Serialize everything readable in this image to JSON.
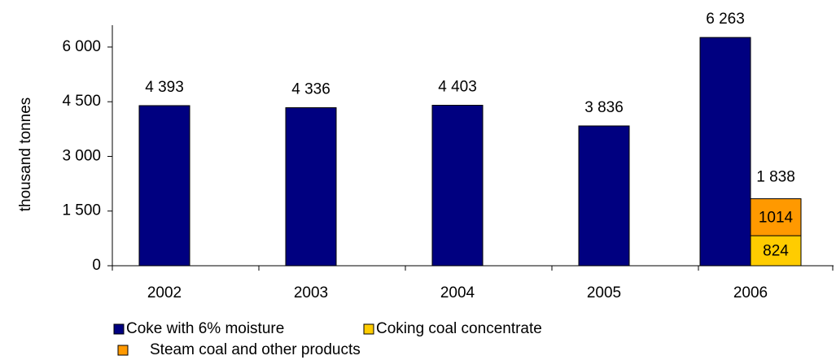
{
  "chart_data": {
    "type": "bar",
    "y_label": "thousand tonnes",
    "categories": [
      "2002",
      "2003",
      "2004",
      "2005",
      "2006"
    ],
    "series": [
      {
        "name": "Coke with 6% moisture",
        "color": "#000080",
        "stack": "coke",
        "values": [
          4393,
          4336,
          4403,
          3836,
          6263
        ],
        "value_labels": [
          "4 393",
          "4 336",
          "4 403",
          "3 836",
          "6 263"
        ]
      },
      {
        "name": "Coking coal concentrate",
        "color": "#ffcc00",
        "stack": "coal",
        "values": [
          null,
          null,
          null,
          null,
          824
        ],
        "value_labels": [
          null,
          null,
          null,
          null,
          "824"
        ]
      },
      {
        "name": "Steam coal and other products",
        "color": "#ff9900",
        "stack": "coal",
        "values": [
          null,
          null,
          null,
          null,
          1014
        ],
        "value_labels": [
          null,
          null,
          null,
          null,
          "1014"
        ]
      }
    ],
    "annotations": [
      {
        "label": "1 838",
        "value": 1838,
        "category": 4
      }
    ],
    "ylim": [
      0,
      6600
    ],
    "yticks": [
      0,
      {
        "value": 1500,
        "label": "1 500"
      },
      {
        "value": 3000,
        "label": "3 000"
      },
      {
        "value": 4500,
        "label": "4 500"
      },
      {
        "value": 6000,
        "label": "6 000"
      }
    ]
  }
}
